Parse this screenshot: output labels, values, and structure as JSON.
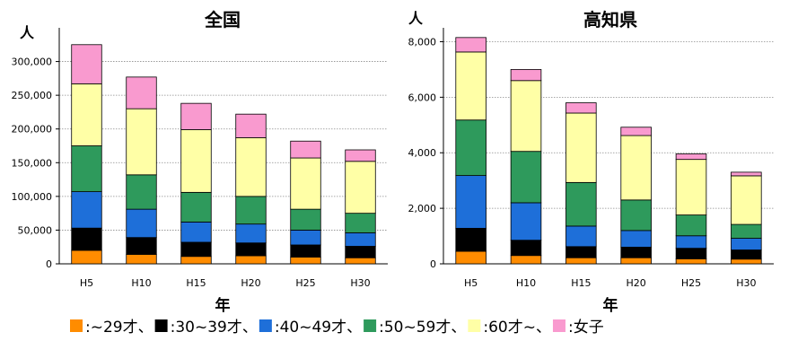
{
  "chart_data": [
    {
      "type": "bar",
      "stacked": true,
      "title": "全国",
      "ylabel": "人",
      "xlabel": "年",
      "categories": [
        "H5",
        "H10",
        "H15",
        "H20",
        "H25",
        "H30"
      ],
      "ylim": [
        0,
        350000
      ],
      "yticks": [
        0,
        50000,
        100000,
        150000,
        200000,
        250000,
        300000
      ],
      "ytick_labels": [
        "0",
        "50,000",
        "100,000",
        "150,000",
        "200,000",
        "250,000",
        "300,000"
      ],
      "grid": true,
      "series": [
        {
          "name": "~29才",
          "color": "#FF8C00",
          "values": [
            20000,
            14000,
            11000,
            12000,
            10000,
            9000
          ]
        },
        {
          "name": "30~39才",
          "color": "#000000",
          "values": [
            33000,
            25000,
            21000,
            19000,
            18000,
            17000
          ]
        },
        {
          "name": "40~49才",
          "color": "#1E6FD9",
          "values": [
            54000,
            42000,
            30000,
            28000,
            22000,
            20000
          ]
        },
        {
          "name": "50~59才",
          "color": "#2E9A5C",
          "values": [
            68000,
            51000,
            44000,
            41000,
            31000,
            29000
          ]
        },
        {
          "name": "60才~",
          "color": "#FFFFA6",
          "values": [
            92000,
            98000,
            93000,
            87000,
            76000,
            77000
          ]
        },
        {
          "name": "女子",
          "color": "#F99ACF",
          "values": [
            58000,
            47000,
            39000,
            35000,
            25000,
            17000
          ]
        }
      ]
    },
    {
      "type": "bar",
      "stacked": true,
      "title": "高知県",
      "ylabel": "人",
      "xlabel": "年",
      "categories": [
        "H5",
        "H10",
        "H15",
        "H20",
        "H25",
        "H30"
      ],
      "ylim": [
        0,
        8500
      ],
      "yticks": [
        0,
        2000,
        4000,
        6000,
        8000
      ],
      "ytick_labels": [
        "0",
        "2,000",
        "4,000",
        "6,000",
        "8,000"
      ],
      "grid": true,
      "series": [
        {
          "name": "~29才",
          "color": "#FF8C00",
          "values": [
            450,
            300,
            220,
            220,
            180,
            170
          ]
        },
        {
          "name": "30~39才",
          "color": "#000000",
          "values": [
            830,
            550,
            400,
            380,
            380,
            330
          ]
        },
        {
          "name": "40~49才",
          "color": "#1E6FD9",
          "values": [
            1900,
            1350,
            740,
            600,
            450,
            420
          ]
        },
        {
          "name": "50~59才",
          "color": "#2E9A5C",
          "values": [
            2000,
            1850,
            1570,
            1100,
            750,
            500
          ]
        },
        {
          "name": "60才~",
          "color": "#FFFFA6",
          "values": [
            2450,
            2550,
            2500,
            2320,
            2000,
            1750
          ]
        },
        {
          "name": "女子",
          "color": "#F99ACF",
          "values": [
            520,
            400,
            370,
            300,
            200,
            130
          ]
        }
      ]
    }
  ],
  "legend": {
    "separator": ":",
    "joiner": "、",
    "items": [
      {
        "label": "~29才",
        "color": "#FF8C00"
      },
      {
        "label": "30~39才",
        "color": "#000000"
      },
      {
        "label": "40~49才",
        "color": "#1E6FD9"
      },
      {
        "label": "50~59才",
        "color": "#2E9A5C"
      },
      {
        "label": "60才~",
        "color": "#FFFFA6"
      },
      {
        "label": "女子",
        "color": "#F99ACF"
      }
    ]
  }
}
